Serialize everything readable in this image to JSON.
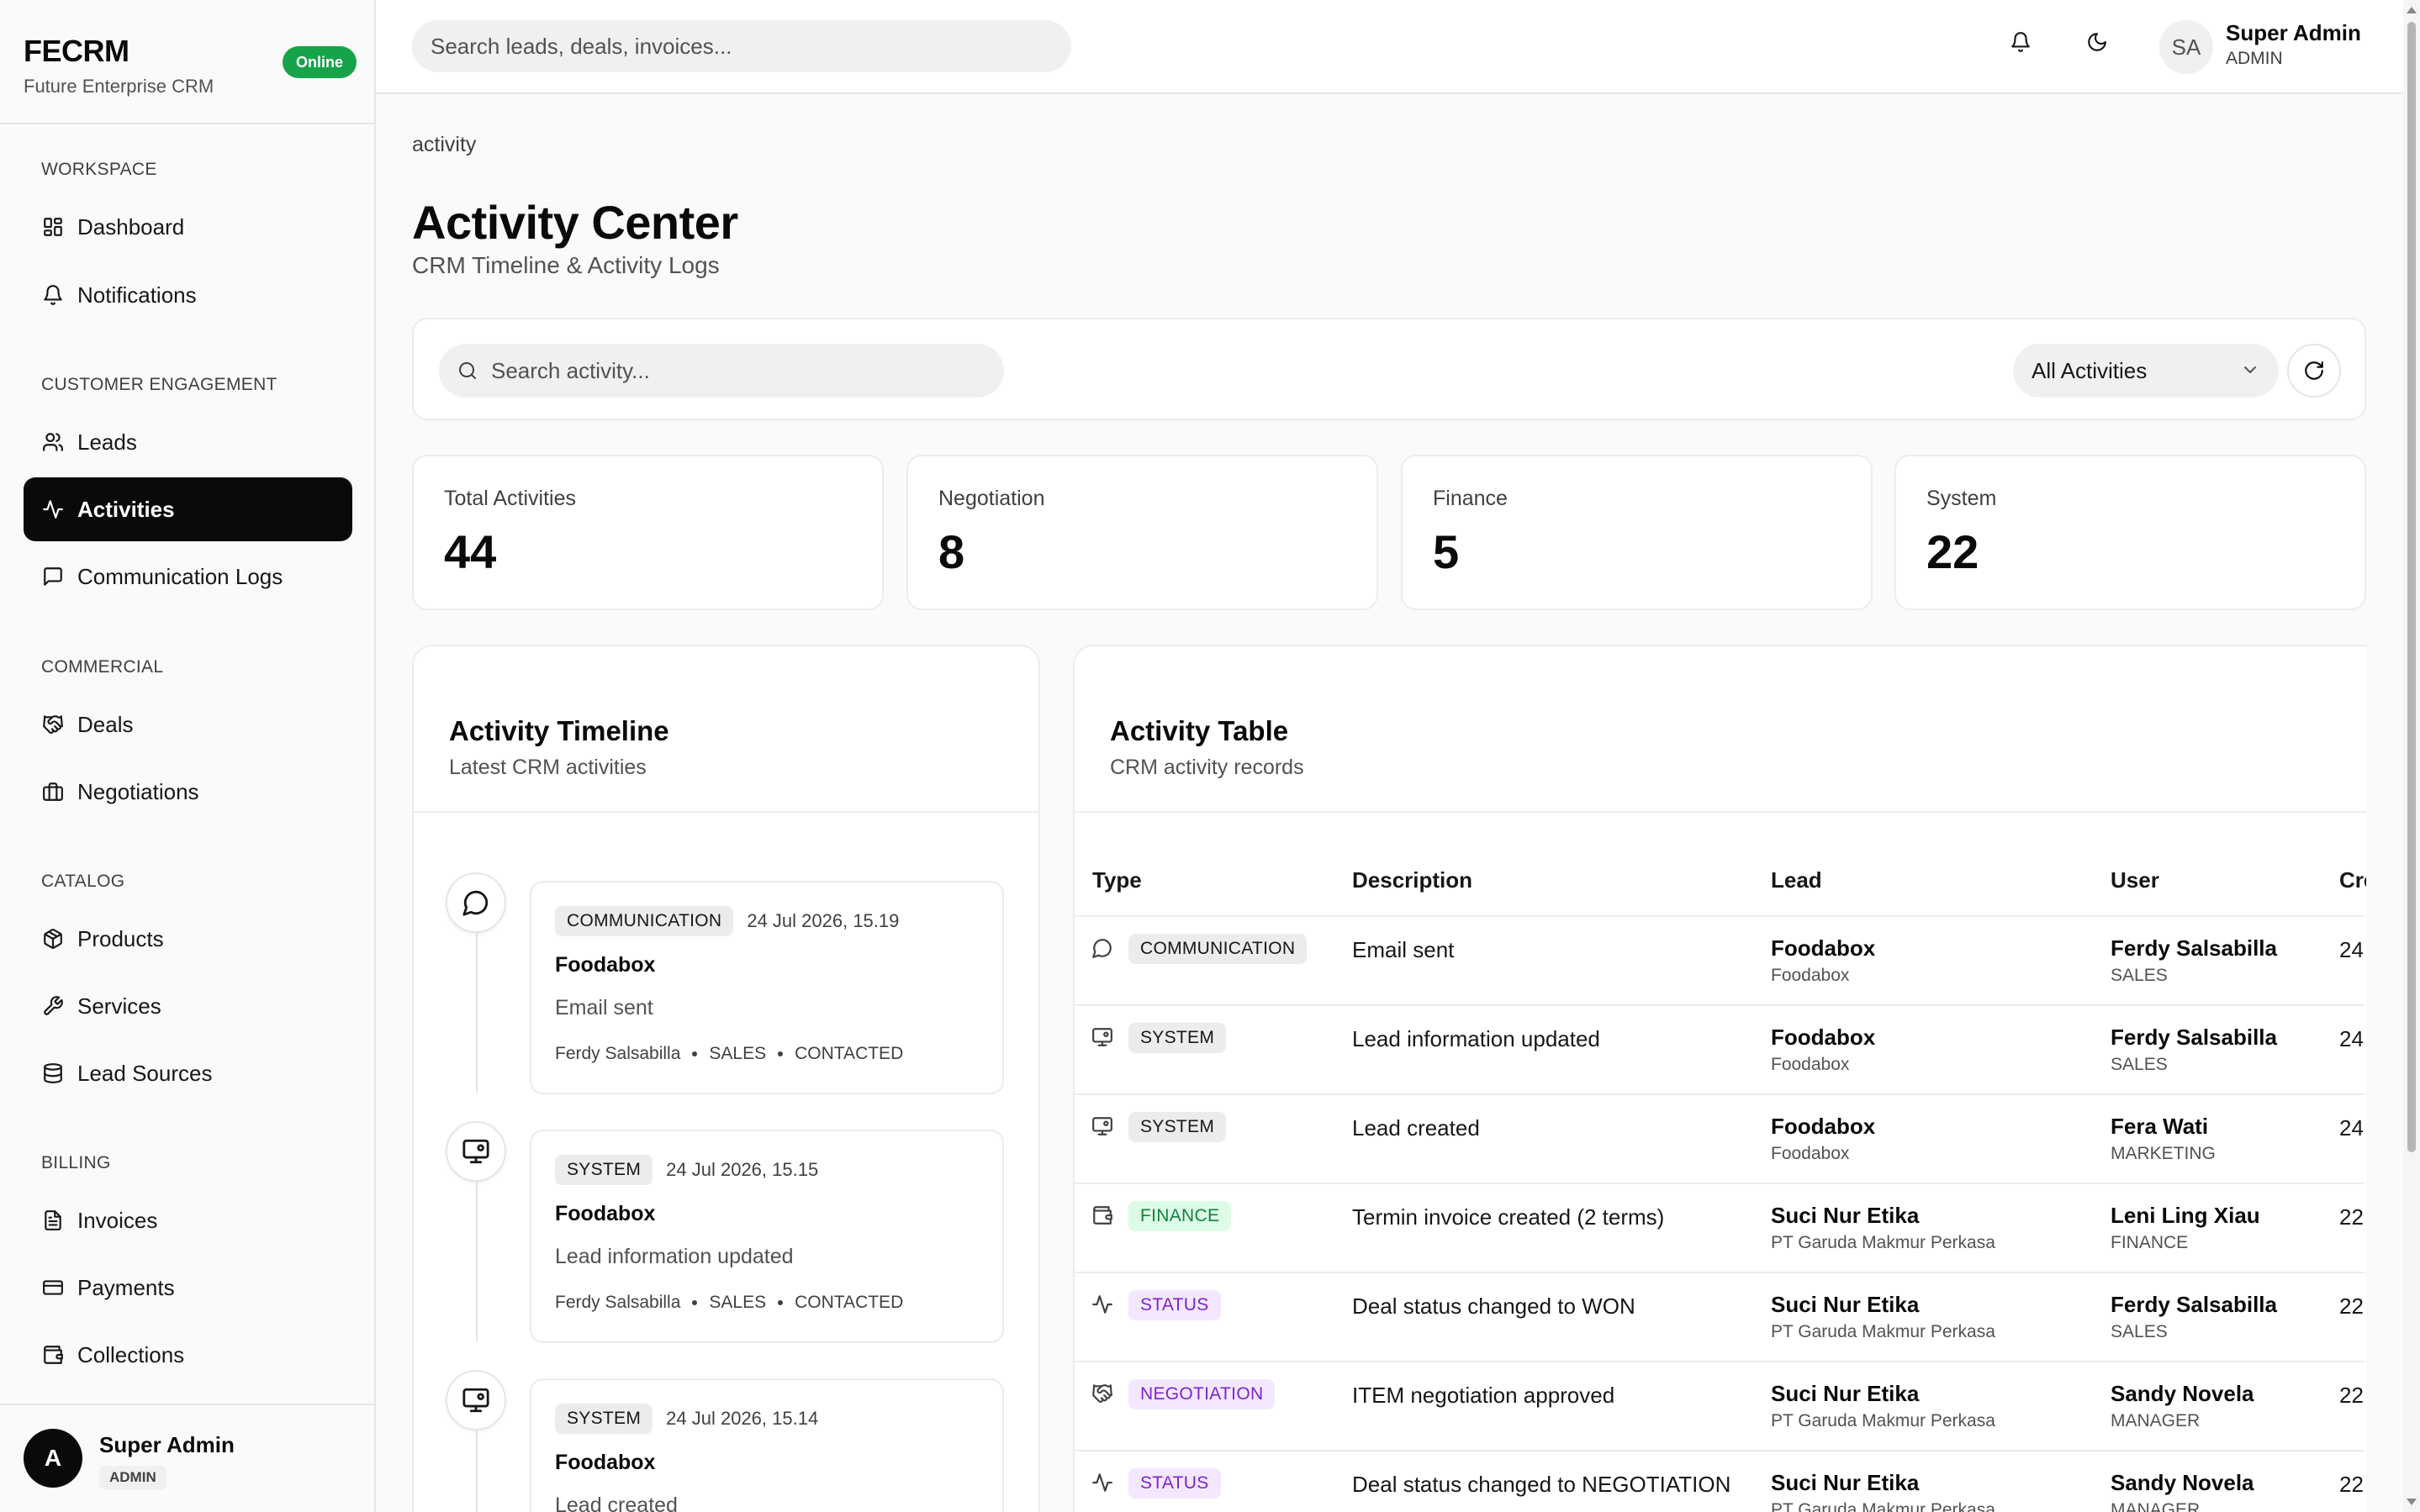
{
  "brand": {
    "name": "FECRM",
    "subtitle": "Future Enterprise CRM",
    "status": "Online"
  },
  "sidebar": {
    "sections": [
      {
        "title": "WORKSPACE",
        "items": [
          {
            "label": "Dashboard",
            "icon": "grid-icon"
          },
          {
            "label": "Notifications",
            "icon": "bell-icon"
          }
        ]
      },
      {
        "title": "CUSTOMER ENGAGEMENT",
        "items": [
          {
            "label": "Leads",
            "icon": "users-icon"
          },
          {
            "label": "Activities",
            "icon": "activity-icon",
            "active": true
          },
          {
            "label": "Communication Logs",
            "icon": "message-square-icon"
          }
        ]
      },
      {
        "title": "COMMERCIAL",
        "items": [
          {
            "label": "Deals",
            "icon": "handshake-icon"
          },
          {
            "label": "Negotiations",
            "icon": "briefcase-icon"
          }
        ]
      },
      {
        "title": "CATALOG",
        "items": [
          {
            "label": "Products",
            "icon": "package-icon"
          },
          {
            "label": "Services",
            "icon": "wrench-icon"
          },
          {
            "label": "Lead Sources",
            "icon": "database-icon"
          }
        ]
      },
      {
        "title": "BILLING",
        "items": [
          {
            "label": "Invoices",
            "icon": "file-text-icon"
          },
          {
            "label": "Payments",
            "icon": "credit-card-icon"
          },
          {
            "label": "Collections",
            "icon": "wallet-icon"
          }
        ]
      }
    ],
    "footer": {
      "avatar": "A",
      "name": "Super Admin",
      "role": "ADMIN"
    }
  },
  "topbar": {
    "search_placeholder": "Search leads, deals, invoices...",
    "avatar": "SA",
    "user_name": "Super Admin",
    "user_role": "ADMIN"
  },
  "page": {
    "breadcrumb": "activity",
    "title": "Activity Center",
    "subtitle": "CRM Timeline & Activity Logs"
  },
  "filters": {
    "search_placeholder": "Search activity...",
    "select_value": "All Activities"
  },
  "stats": [
    {
      "label": "Total Activities",
      "value": "44"
    },
    {
      "label": "Negotiation",
      "value": "8"
    },
    {
      "label": "Finance",
      "value": "5"
    },
    {
      "label": "System",
      "value": "22"
    }
  ],
  "timeline": {
    "title": "Activity Timeline",
    "subtitle": "Latest CRM activities",
    "items": [
      {
        "type": "COMMUNICATION",
        "icon": "message-circle-icon",
        "time": "24 Jul 2026, 15.19",
        "lead": "Foodabox",
        "desc": "Email sent",
        "user": "Ferdy Salsabilla",
        "role": "SALES",
        "status": "CONTACTED"
      },
      {
        "type": "SYSTEM",
        "icon": "monitor-icon",
        "time": "24 Jul 2026, 15.15",
        "lead": "Foodabox",
        "desc": "Lead information updated",
        "user": "Ferdy Salsabilla",
        "role": "SALES",
        "status": "CONTACTED"
      },
      {
        "type": "SYSTEM",
        "icon": "monitor-icon",
        "time": "24 Jul 2026, 15.14",
        "lead": "Foodabox",
        "desc": "Lead created",
        "user": "",
        "role": "",
        "status": ""
      }
    ]
  },
  "table": {
    "title": "Activity Table",
    "subtitle": "CRM activity records",
    "columns": [
      "Type",
      "Description",
      "Lead",
      "User",
      "Cre"
    ],
    "rows": [
      {
        "type": "COMMUNICATION",
        "tone": "gray",
        "icon": "message-circle-icon",
        "desc": "Email sent",
        "lead": "Foodabox",
        "lead_sub": "Foodabox",
        "user": "Ferdy Salsabilla",
        "user_sub": "SALES",
        "created": "24"
      },
      {
        "type": "SYSTEM",
        "tone": "gray",
        "icon": "monitor-icon",
        "desc": "Lead information updated",
        "lead": "Foodabox",
        "lead_sub": "Foodabox",
        "user": "Ferdy Salsabilla",
        "user_sub": "SALES",
        "created": "24"
      },
      {
        "type": "SYSTEM",
        "tone": "gray",
        "icon": "monitor-icon",
        "desc": "Lead created",
        "lead": "Foodabox",
        "lead_sub": "Foodabox",
        "user": "Fera Wati",
        "user_sub": "MARKETING",
        "created": "24"
      },
      {
        "type": "FINANCE",
        "tone": "green",
        "icon": "wallet-icon",
        "desc": "Termin invoice created (2 terms)",
        "lead": "Suci Nur Etika",
        "lead_sub": "PT Garuda Makmur Perkasa",
        "user": "Leni Ling Xiau",
        "user_sub": "FINANCE",
        "created": "22"
      },
      {
        "type": "STATUS",
        "tone": "purple",
        "icon": "activity-icon",
        "desc": "Deal status changed to WON",
        "lead": "Suci Nur Etika",
        "lead_sub": "PT Garuda Makmur Perkasa",
        "user": "Ferdy Salsabilla",
        "user_sub": "SALES",
        "created": "22"
      },
      {
        "type": "NEGOTIATION",
        "tone": "purple",
        "icon": "handshake-icon",
        "desc": "ITEM negotiation approved",
        "lead": "Suci Nur Etika",
        "lead_sub": "PT Garuda Makmur Perkasa",
        "user": "Sandy Novela",
        "user_sub": "MANAGER",
        "created": "22"
      },
      {
        "type": "STATUS",
        "tone": "purple",
        "icon": "activity-icon",
        "desc": "Deal status changed to NEGOTIATION",
        "lead": "Suci Nur Etika",
        "lead_sub": "PT Garuda Makmur Perkasa",
        "user": "Sandy Novela",
        "user_sub": "MANAGER",
        "created": "22"
      }
    ]
  }
}
